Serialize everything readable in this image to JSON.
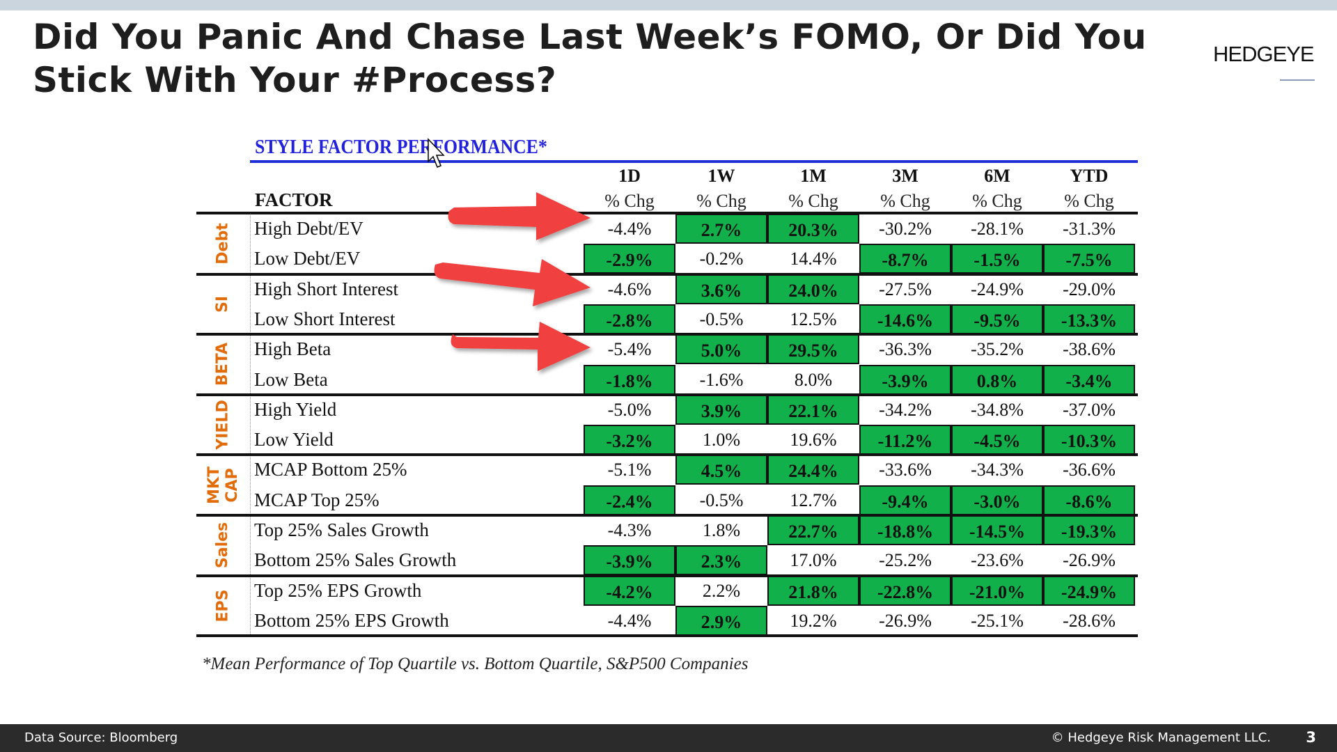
{
  "slide": {
    "title": "Did You Panic And Chase Last Week’s FOMO, Or Did You Stick With Your #Process?",
    "logo": "HEDGEYE",
    "page_number": "3"
  },
  "table": {
    "title": "STYLE FACTOR PERFORMANCE*",
    "factor_header": "FACTOR",
    "columns": [
      {
        "period": "1D",
        "sub": "% Chg"
      },
      {
        "period": "1W",
        "sub": "% Chg"
      },
      {
        "period": "1M",
        "sub": "% Chg"
      },
      {
        "period": "3M",
        "sub": "% Chg"
      },
      {
        "period": "6M",
        "sub": "% Chg"
      },
      {
        "period": "YTD",
        "sub": "% Chg"
      }
    ],
    "highlight_color": "#12b04a",
    "group_label_color": "#e36c0a",
    "groups": [
      {
        "label": "Debt",
        "rows": [
          {
            "factor": "High Debt/EV",
            "values": [
              "-4.4%",
              "2.7%",
              "20.3%",
              "-30.2%",
              "-28.1%",
              "-31.3%"
            ],
            "highlight": [
              false,
              true,
              true,
              false,
              false,
              false
            ]
          },
          {
            "factor": "Low Debt/EV",
            "values": [
              "-2.9%",
              "-0.2%",
              "14.4%",
              "-8.7%",
              "-1.5%",
              "-7.5%"
            ],
            "highlight": [
              true,
              false,
              false,
              true,
              true,
              true
            ]
          }
        ]
      },
      {
        "label": "SI",
        "rows": [
          {
            "factor": "High Short Interest",
            "values": [
              "-4.6%",
              "3.6%",
              "24.0%",
              "-27.5%",
              "-24.9%",
              "-29.0%"
            ],
            "highlight": [
              false,
              true,
              true,
              false,
              false,
              false
            ]
          },
          {
            "factor": "Low Short Interest",
            "values": [
              "-2.8%",
              "-0.5%",
              "12.5%",
              "-14.6%",
              "-9.5%",
              "-13.3%"
            ],
            "highlight": [
              true,
              false,
              false,
              true,
              true,
              true
            ]
          }
        ]
      },
      {
        "label": "BETA",
        "rows": [
          {
            "factor": "High Beta",
            "values": [
              "-5.4%",
              "5.0%",
              "29.5%",
              "-36.3%",
              "-35.2%",
              "-38.6%"
            ],
            "highlight": [
              false,
              true,
              true,
              false,
              false,
              false
            ]
          },
          {
            "factor": "Low Beta",
            "values": [
              "-1.8%",
              "-1.6%",
              "8.0%",
              "-3.9%",
              "0.8%",
              "-3.4%"
            ],
            "highlight": [
              true,
              false,
              false,
              true,
              true,
              true
            ]
          }
        ]
      },
      {
        "label": "YIELD",
        "rows": [
          {
            "factor": "High Yield",
            "values": [
              "-5.0%",
              "3.9%",
              "22.1%",
              "-34.2%",
              "-34.8%",
              "-37.0%"
            ],
            "highlight": [
              false,
              true,
              true,
              false,
              false,
              false
            ]
          },
          {
            "factor": "Low Yield",
            "values": [
              "-3.2%",
              "1.0%",
              "19.6%",
              "-11.2%",
              "-4.5%",
              "-10.3%"
            ],
            "highlight": [
              true,
              false,
              false,
              true,
              true,
              true
            ]
          }
        ]
      },
      {
        "label": "MKT CAP",
        "rows": [
          {
            "factor": "MCAP Bottom 25%",
            "values": [
              "-5.1%",
              "4.5%",
              "24.4%",
              "-33.6%",
              "-34.3%",
              "-36.6%"
            ],
            "highlight": [
              false,
              true,
              true,
              false,
              false,
              false
            ]
          },
          {
            "factor": "MCAP Top 25%",
            "values": [
              "-2.4%",
              "-0.5%",
              "12.7%",
              "-9.4%",
              "-3.0%",
              "-8.6%"
            ],
            "highlight": [
              true,
              false,
              false,
              true,
              true,
              true
            ]
          }
        ]
      },
      {
        "label": "Sales",
        "rows": [
          {
            "factor": "Top 25% Sales Growth",
            "values": [
              "-4.3%",
              "1.8%",
              "22.7%",
              "-18.8%",
              "-14.5%",
              "-19.3%"
            ],
            "highlight": [
              false,
              false,
              true,
              true,
              true,
              true
            ]
          },
          {
            "factor": "Bottom 25% Sales Growth",
            "values": [
              "-3.9%",
              "2.3%",
              "17.0%",
              "-25.2%",
              "-23.6%",
              "-26.9%"
            ],
            "highlight": [
              true,
              true,
              false,
              false,
              false,
              false
            ]
          }
        ]
      },
      {
        "label": "EPS",
        "rows": [
          {
            "factor": "Top 25% EPS Growth",
            "values": [
              "-4.2%",
              "2.2%",
              "21.8%",
              "-22.8%",
              "-21.0%",
              "-24.9%"
            ],
            "highlight": [
              true,
              false,
              true,
              true,
              true,
              true
            ]
          },
          {
            "factor": "Bottom 25% EPS Growth",
            "values": [
              "-4.4%",
              "2.9%",
              "19.2%",
              "-26.9%",
              "-25.1%",
              "-28.6%"
            ],
            "highlight": [
              false,
              true,
              false,
              false,
              false,
              false
            ]
          }
        ]
      }
    ],
    "footnote": "*Mean Performance of Top Quartile vs. Bottom Quartile, S&P500 Companies"
  },
  "annotations": {
    "arrow_color": "#f04040",
    "arrows": "red-arrow-icon"
  },
  "footer": {
    "source": "Data Source: Bloomberg",
    "copyright": "© Hedgeye Risk Management LLC."
  }
}
